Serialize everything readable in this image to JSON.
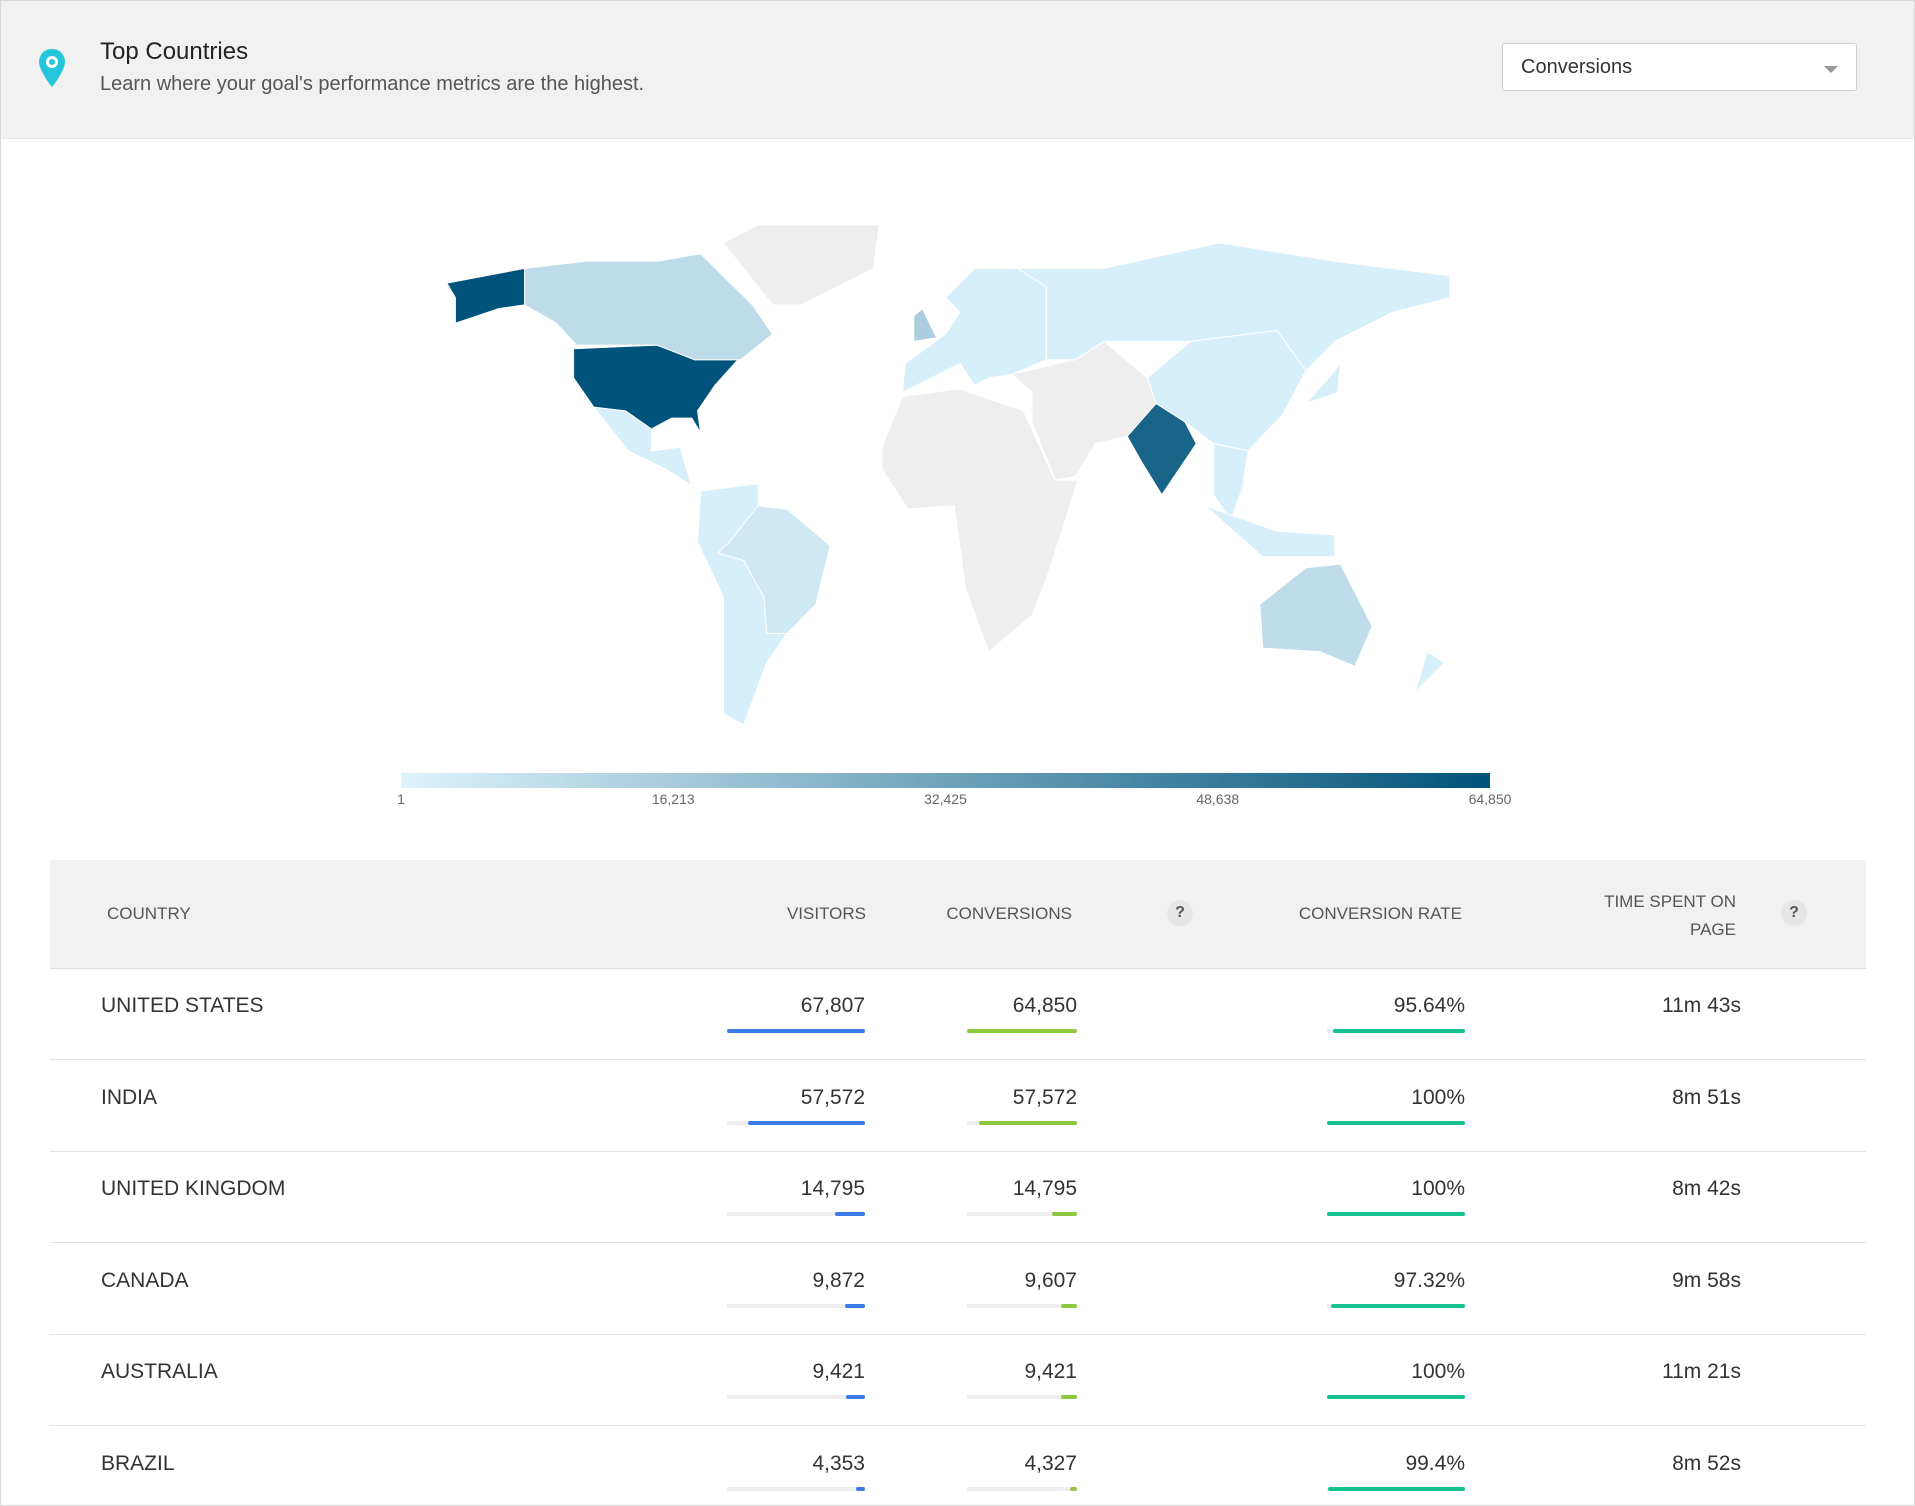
{
  "header": {
    "title": "Top Countries",
    "subtitle": "Learn where your goal's performance metrics are the highest."
  },
  "dropdown": {
    "selected": "Conversions"
  },
  "map_legend": {
    "range": [
      1,
      64850
    ],
    "colors": [
      "#def3fc",
      "#00537a"
    ],
    "ticks": [
      1,
      {
        "value": 16213,
        "label": "16,213"
      },
      {
        "value": 32425,
        "label": "32,425"
      },
      {
        "value": 48638,
        "label": "48,638"
      },
      {
        "value": 64850,
        "label": "64,850"
      }
    ]
  },
  "table": {
    "columns": [
      "COUNTRY",
      "VISITORS",
      "CONVERSIONS",
      "CONVERSION RATE",
      "TIME SPENT ON PAGE"
    ],
    "help": "?",
    "bar_colors": {
      "visitors": "#3b7be8",
      "conversions": "#8dc63f",
      "conversion_rate": "#17c08f"
    },
    "rows": [
      {
        "country": "UNITED STATES",
        "visitors": {
          "value": 67807,
          "label": "67,807"
        },
        "conversions": {
          "value": 64850,
          "label": "64,850"
        },
        "conversion_rate": {
          "value": 95.64,
          "label": "95.64%"
        },
        "time": "11m 43s"
      },
      {
        "country": "INDIA",
        "visitors": {
          "value": 57572,
          "label": "57,572"
        },
        "conversions": {
          "value": 57572,
          "label": "57,572"
        },
        "conversion_rate": {
          "value": 100,
          "label": "100%"
        },
        "time": "8m 51s"
      },
      {
        "country": "UNITED KINGDOM",
        "visitors": {
          "value": 14795,
          "label": "14,795"
        },
        "conversions": {
          "value": 14795,
          "label": "14,795"
        },
        "conversion_rate": {
          "value": 100,
          "label": "100%"
        },
        "time": "8m 42s"
      },
      {
        "country": "CANADA",
        "visitors": {
          "value": 9872,
          "label": "9,872"
        },
        "conversions": {
          "value": 9607,
          "label": "9,607"
        },
        "conversion_rate": {
          "value": 97.32,
          "label": "97.32%"
        },
        "time": "9m 58s"
      },
      {
        "country": "AUSTRALIA",
        "visitors": {
          "value": 9421,
          "label": "9,421"
        },
        "conversions": {
          "value": 9421,
          "label": "9,421"
        },
        "conversion_rate": {
          "value": 100,
          "label": "100%"
        },
        "time": "11m 21s"
      },
      {
        "country": "BRAZIL",
        "visitors": {
          "value": 4353,
          "label": "4,353"
        },
        "conversions": {
          "value": 4327,
          "label": "4,327"
        },
        "conversion_rate": {
          "value": 99.4,
          "label": "99.4%"
        },
        "time": "8m 52s"
      }
    ]
  }
}
